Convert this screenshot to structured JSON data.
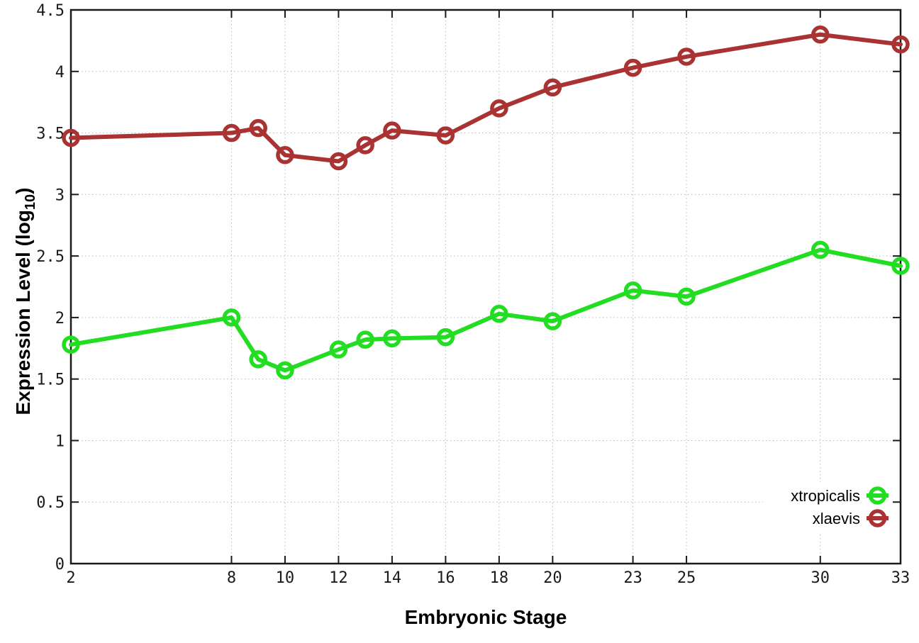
{
  "chart_data": {
    "type": "line",
    "title": "",
    "xlabel": "Embryonic Stage",
    "ylabel": {
      "text": "Expression Level (log",
      "sub": "10",
      "suffix": ")"
    },
    "x_ticks": [
      2,
      8,
      10,
      12,
      14,
      16,
      18,
      20,
      23,
      25,
      30,
      33
    ],
    "y_ticks": [
      0,
      0.5,
      1,
      1.5,
      2,
      2.5,
      3,
      3.5,
      4,
      4.5
    ],
    "xlim": [
      2,
      33
    ],
    "ylim": [
      0,
      4.5
    ],
    "grid": true,
    "legend_position": "bottom-right",
    "x": [
      2,
      8,
      9,
      10,
      12,
      13,
      14,
      16,
      18,
      20,
      23,
      25,
      30,
      33
    ],
    "series": [
      {
        "name": "xtropicalis",
        "color": "#22dd22",
        "values": [
          1.78,
          2.0,
          1.66,
          1.57,
          1.74,
          1.82,
          1.83,
          1.84,
          2.03,
          1.97,
          2.22,
          2.17,
          2.55,
          2.42
        ]
      },
      {
        "name": "xlaevis",
        "color": "#a93333",
        "values": [
          3.46,
          3.5,
          3.54,
          3.32,
          3.27,
          3.4,
          3.52,
          3.48,
          3.7,
          3.87,
          4.03,
          4.12,
          4.3,
          4.22
        ]
      }
    ]
  },
  "style": {
    "border_color": "#1a1a1a",
    "grid_color": "#b8b8b8",
    "background": "#ffffff",
    "line_width": 6,
    "marker_radius": 10,
    "marker_stroke": 5.5
  }
}
